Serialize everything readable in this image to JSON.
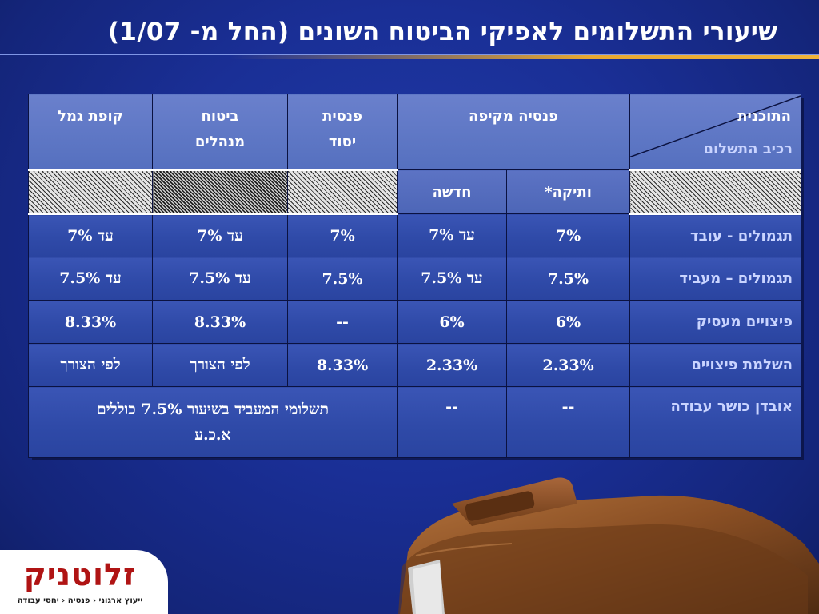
{
  "slide": {
    "title": "שיעורי התשלומים לאפיקי הביטוח השונים (החל מ- 1/07)"
  },
  "table": {
    "corner_plan": "התוכנית",
    "corner_component": "רכיב התשלום",
    "headers": {
      "comprehensive_pension": "פנסיה מקיפה",
      "basic_pension_l1": "פנסית",
      "basic_pension_l2": "יסוד",
      "managers_insurance_l1": "ביטוח",
      "managers_insurance_l2": "מנהלים",
      "provident_fund": "קופת גמל"
    },
    "subheaders": {
      "old": "ותיקה*",
      "new": "חדשה"
    },
    "rows": [
      {
        "label": "תגמולים - עובד",
        "old": "7%",
        "new": "עד 7%",
        "basic": "7%",
        "managers": "עד 7%",
        "provident": "עד 7%"
      },
      {
        "label": "תגמולים – מעביד",
        "old": "7.5%",
        "new": "עד 7.5%",
        "basic": "7.5%",
        "managers": "עד 7.5%",
        "provident": "עד 7.5%"
      },
      {
        "label": "פיצויים מעסיק",
        "old": "6%",
        "new": "6%",
        "basic": "--",
        "managers": "8.33%",
        "provident": "8.33%"
      },
      {
        "label": "השלמת פיצויים",
        "old": "2.33%",
        "new": "2.33%",
        "basic": "8.33%",
        "managers": "לפי הצורך",
        "provident": "לפי הצורך"
      }
    ],
    "last_row": {
      "label": "אובדן כושר עבודה",
      "old": "--",
      "new": "--",
      "note_l1": "תשלומי המעביד בשיעור 7.5% כוללים",
      "note_l2": "א.כ.ע"
    }
  },
  "logo": {
    "name": "זלוטניק",
    "tagline": "ייעוץ ארגוני ‹ פנסיה ‹ יחסי עבודה"
  },
  "colors": {
    "background": "#1a2f96",
    "header_cell": "#5570bf",
    "data_cell": "#2f4aa8",
    "row_label": "#c9d4ff",
    "accent_gold": "#e8a830",
    "logo_red": "#b01414"
  }
}
